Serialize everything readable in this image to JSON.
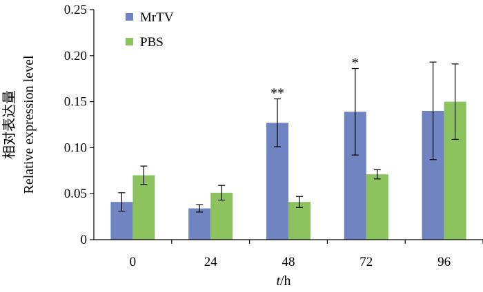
{
  "chart_data": {
    "type": "bar",
    "xlabel_italic": "t",
    "xlabel_rest": "/h",
    "ylabel_cn": "相对表达量",
    "ylabel_en": "Relative expression level",
    "categories": [
      "0",
      "24",
      "48",
      "72",
      "96"
    ],
    "ylim": [
      0,
      0.25
    ],
    "yticks": [
      "0",
      "0.05",
      "0.10",
      "0.15",
      "0.20",
      "0.25"
    ],
    "ytick_values": [
      0,
      0.05,
      0.1,
      0.15,
      0.2,
      0.25
    ],
    "legend_position": "top-left",
    "series": [
      {
        "name": "MrTV",
        "color": "#6f84c0",
        "values": [
          0.041,
          0.034,
          0.127,
          0.139,
          0.14
        ],
        "errors": [
          0.01,
          0.004,
          0.026,
          0.047,
          0.053
        ]
      },
      {
        "name": "PBS",
        "color": "#8dc35e",
        "values": [
          0.07,
          0.051,
          0.041,
          0.071,
          0.15
        ],
        "errors": [
          0.01,
          0.008,
          0.006,
          0.005,
          0.041
        ]
      }
    ],
    "annotations": [
      {
        "category": "48",
        "series": "MrTV",
        "text": "**"
      },
      {
        "category": "72",
        "series": "MrTV",
        "text": "*"
      }
    ]
  }
}
